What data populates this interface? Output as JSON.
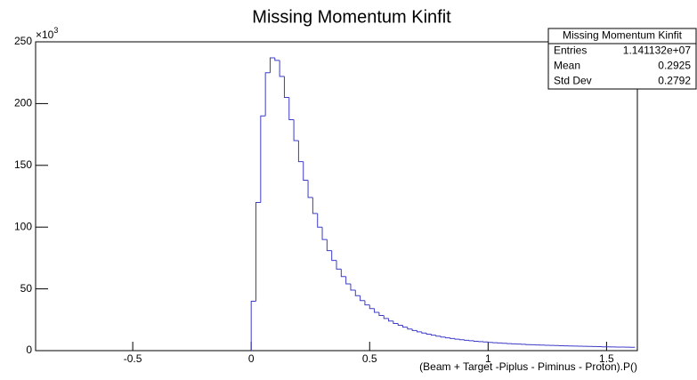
{
  "chart_data": {
    "type": "histogram",
    "title": "Missing Momentum Kinfit",
    "xlabel": "(Beam + Target -Piplus - Piminus - Proton).P()",
    "ymultiplier": {
      "base": "×10",
      "exponent": "3"
    },
    "color": "#3c3cc8",
    "xlim": [
      -0.91,
      1.63
    ],
    "xticks": [
      -0.5,
      0,
      0.5,
      1,
      1.5
    ],
    "ylim": [
      0,
      250
    ],
    "yticks": [
      0,
      50,
      100,
      150,
      200,
      250
    ],
    "bins": [
      0,
      0.02,
      0.04,
      0.06,
      0.08,
      0.1,
      0.12,
      0.14,
      0.16,
      0.18,
      0.2,
      0.22,
      0.24,
      0.26,
      0.28,
      0.3,
      0.32,
      0.34,
      0.36,
      0.38,
      0.4,
      0.42,
      0.44,
      0.46,
      0.48,
      0.5,
      0.52,
      0.54,
      0.56,
      0.58,
      0.6,
      0.62,
      0.64,
      0.66,
      0.68,
      0.7,
      0.72,
      0.74,
      0.76,
      0.78,
      0.8,
      0.82,
      0.84,
      0.86,
      0.88,
      0.9,
      0.92,
      0.94,
      0.96,
      0.98,
      1,
      1.02,
      1.04,
      1.06,
      1.08,
      1.1,
      1.12,
      1.14,
      1.16,
      1.18,
      1.2,
      1.22,
      1.24,
      1.26,
      1.28,
      1.3,
      1.32,
      1.34,
      1.36,
      1.38,
      1.4,
      1.42,
      1.44,
      1.46,
      1.48,
      1.5,
      1.52,
      1.54,
      1.56,
      1.58,
      1.6,
      1.62
    ],
    "values": [
      40,
      120,
      190,
      225,
      237,
      235,
      222,
      205,
      187,
      170,
      153,
      138,
      124,
      111,
      100,
      90,
      81,
      73,
      66,
      60,
      54,
      49,
      44.5,
      40.5,
      37,
      34,
      31,
      28.5,
      26,
      24,
      22,
      20.5,
      19,
      17.5,
      16.3,
      15.2,
      14.2,
      13.3,
      12.5,
      11.7,
      11,
      10.4,
      9.8,
      9.3,
      8.8,
      8.4,
      8,
      7.6,
      7.3,
      7,
      6.7,
      6.4,
      6.2,
      5.9,
      5.7,
      5.5,
      5.3,
      5.1,
      4.9,
      4.8,
      4.6,
      4.5,
      4.3,
      4.2,
      4.1,
      4,
      3.9,
      3.8,
      3.7,
      3.6,
      3.5,
      3.4,
      3.3,
      3.2,
      3.1,
      3.05,
      3,
      2.9,
      2.85,
      2.8,
      2.7
    ],
    "stats": {
      "title": "Missing Momentum Kinfit",
      "rows": [
        [
          "Entries",
          "1.141132e+07"
        ],
        [
          "Mean",
          "0.2925"
        ],
        [
          "Std Dev",
          "0.2792"
        ]
      ]
    }
  }
}
